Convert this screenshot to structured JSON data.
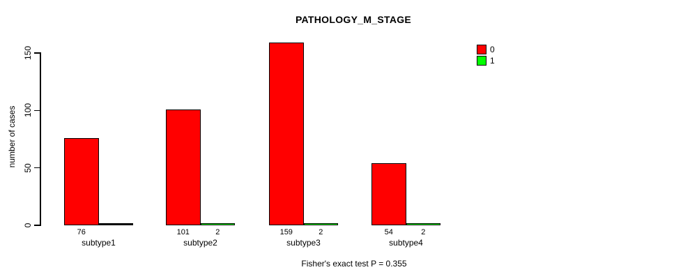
{
  "chart_data": {
    "type": "bar",
    "title": "PATHOLOGY_M_STAGE",
    "ylabel": "number of cases",
    "xlabel": "",
    "categories": [
      "subtype1",
      "subtype2",
      "subtype3",
      "subtype4"
    ],
    "series": [
      {
        "name": "0",
        "color": "#ff0000",
        "values": [
          76,
          101,
          159,
          54
        ]
      },
      {
        "name": "1",
        "color": "#00ff00",
        "values": [
          0,
          2,
          2,
          2
        ]
      }
    ],
    "bar_value_labels": {
      "show": true,
      "hide_zero": true
    },
    "yticks": [
      0,
      50,
      100,
      150
    ],
    "ylim": [
      0,
      160
    ],
    "grid": false,
    "legend_position": "top-right",
    "caption": "Fisher's exact test P = 0.355",
    "colors": {
      "bar_border": "#000000",
      "axis": "#000000",
      "text": "#000000",
      "background": "#ffffff"
    }
  }
}
